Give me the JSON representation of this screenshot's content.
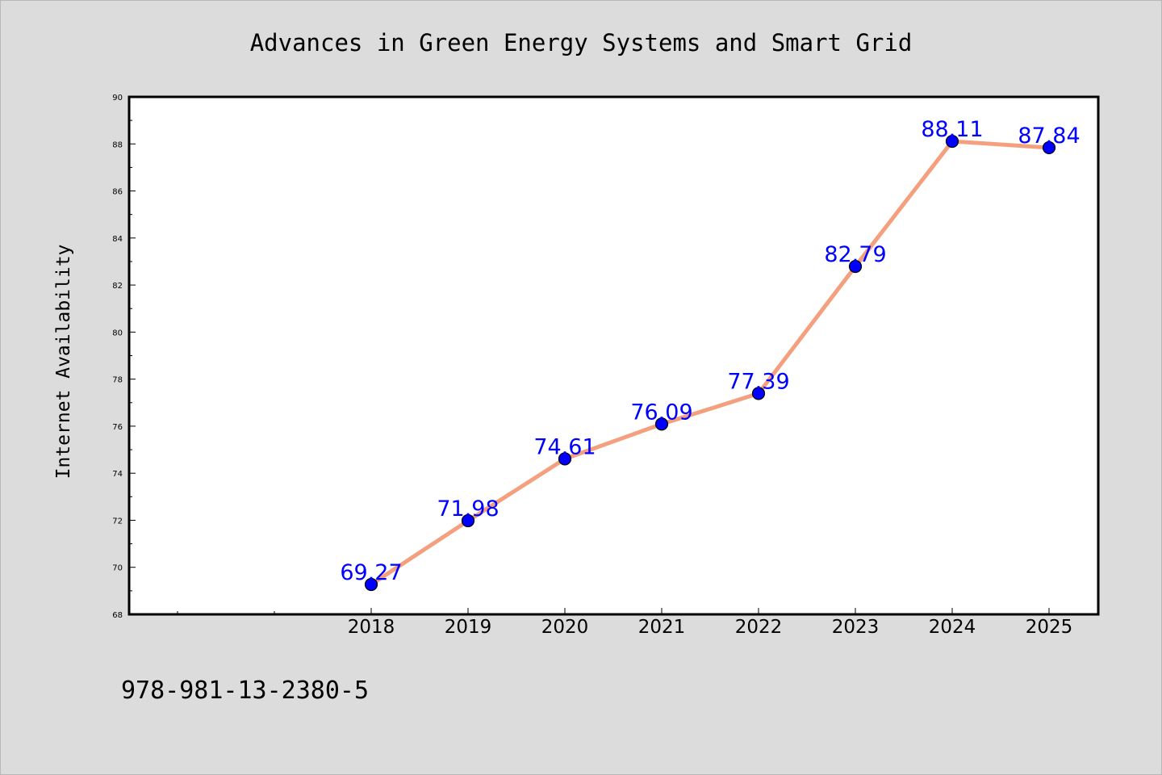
{
  "footer": {
    "isbn": "978-981-13-2380-5"
  },
  "chart_data": {
    "type": "line",
    "title": "Advances in Green Energy Systems and Smart Grid",
    "xlabel": "",
    "ylabel": "Internet Availability",
    "categories": [
      "2018",
      "2019",
      "2020",
      "2021",
      "2022",
      "2023",
      "2024",
      "2025"
    ],
    "series": [
      {
        "values": [
          69.27,
          71.98,
          74.61,
          76.09,
          77.39,
          82.79,
          88.11,
          87.84
        ],
        "labels": [
          "69.27",
          "71.98",
          "74.61",
          "76.09",
          "77.39",
          "82.79",
          "88.11",
          "87.84"
        ],
        "line_color": "#f4a07e",
        "marker_color": "#0000ff"
      }
    ],
    "ylim": [
      68,
      90
    ],
    "yticks": [
      "68",
      "70",
      "72",
      "74",
      "76",
      "78",
      "80",
      "82",
      "84",
      "86",
      "88",
      "90"
    ],
    "grid": false,
    "legend": "none",
    "colors": {
      "background": "#dcdcdc",
      "plot_area": "#ffffff",
      "label_text": "#0000ff"
    }
  }
}
